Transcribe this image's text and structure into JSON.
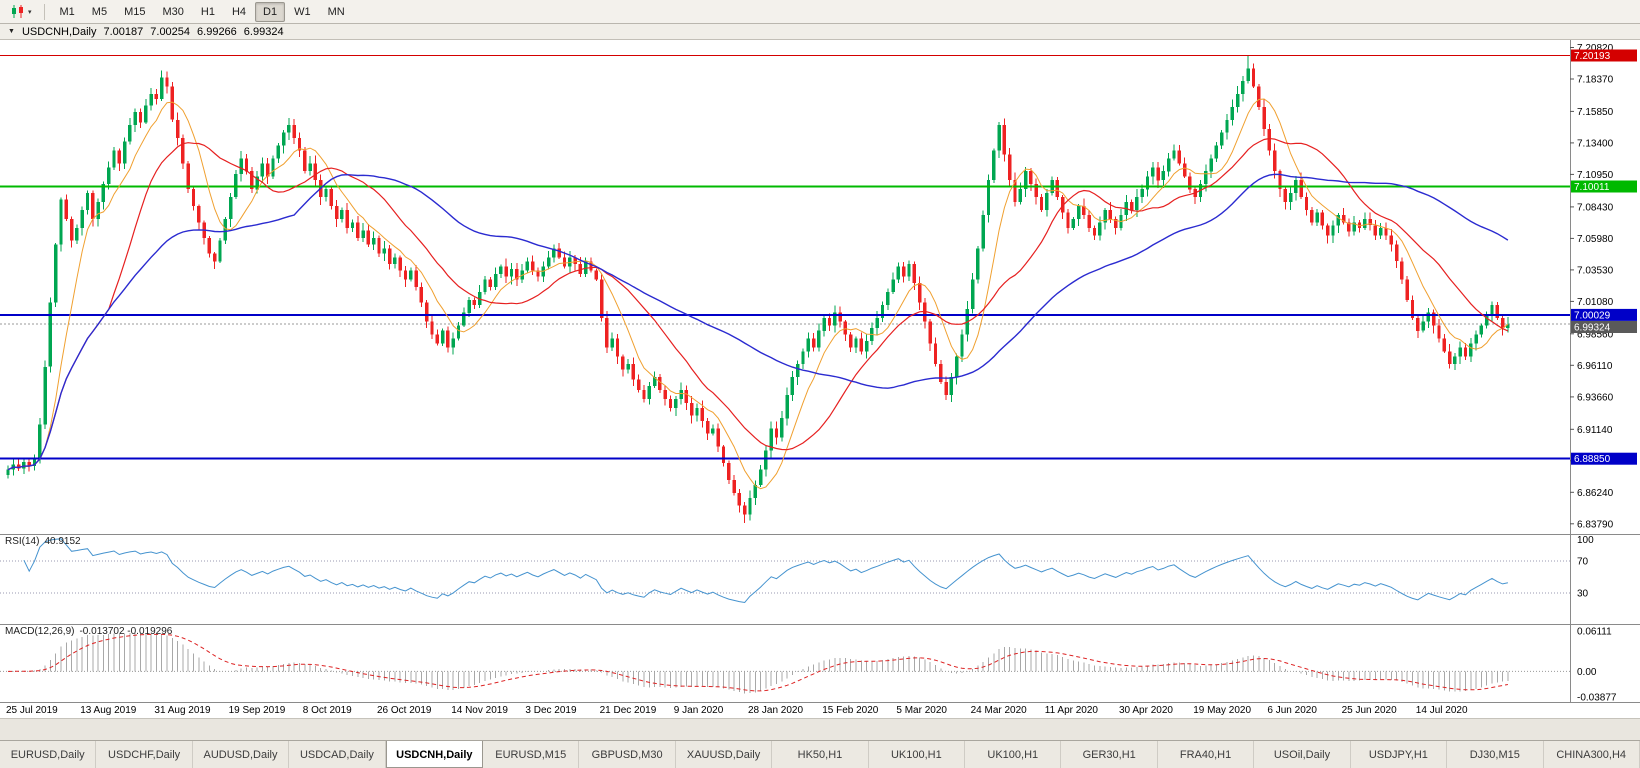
{
  "toolbar": {
    "timeframes": [
      "M1",
      "M5",
      "M15",
      "M30",
      "H1",
      "H4",
      "D1",
      "W1",
      "MN"
    ],
    "active": "D1",
    "caret_icon": "▾"
  },
  "chart_header": {
    "collapse_icon": "▼",
    "symbol": "USDCNH,Daily",
    "ohlc": {
      "open": "7.00187",
      "high": "7.00254",
      "low": "6.99266",
      "close": "6.99324"
    }
  },
  "levels": [
    {
      "value": 7.20193,
      "label": "7.20193",
      "color": "#d40000",
      "line_width": 1
    },
    {
      "value": 7.10011,
      "label": "7.10011",
      "color": "#00b900",
      "line_width": 2
    },
    {
      "value": 7.00029,
      "label": "7.00029",
      "color": "#0000c8",
      "line_width": 2
    },
    {
      "value": 6.8885,
      "label": "6.88850",
      "color": "#0000c8",
      "line_width": 2
    }
  ],
  "bid": {
    "value": 6.99324,
    "label": "6.99324",
    "color": "#5a5a5a"
  },
  "chart_data": {
    "type": "candlestick",
    "title": "USDCNH,Daily",
    "ylim": [
      6.83,
      7.214
    ],
    "y_ticks": [
      "7.20820",
      "7.18370",
      "7.15850",
      "7.13400",
      "7.10950",
      "7.08430",
      "7.05980",
      "7.03530",
      "7.01080",
      "6.98560",
      "6.96110",
      "6.93660",
      "6.91140",
      "6.88690",
      "6.86240",
      "6.83790"
    ],
    "x_labels": [
      "25 Jul 2019",
      "13 Aug 2019",
      "31 Aug 2019",
      "19 Sep 2019",
      "8 Oct 2019",
      "26 Oct 2019",
      "14 Nov 2019",
      "3 Dec 2019",
      "21 Dec 2019",
      "9 Jan 2020",
      "28 Jan 2020",
      "15 Feb 2020",
      "5 Mar 2020",
      "24 Mar 2020",
      "11 Apr 2020",
      "30 Apr 2020",
      "19 May 2020",
      "6 Jun 2020",
      "25 Jun 2020",
      "14 Jul 2020"
    ],
    "closes": [
      6.88,
      6.884,
      6.881,
      6.886,
      6.883,
      6.889,
      6.915,
      6.96,
      7.01,
      7.055,
      7.09,
      7.075,
      7.058,
      7.068,
      7.082,
      7.095,
      7.075,
      7.088,
      7.102,
      7.115,
      7.128,
      7.118,
      7.135,
      7.148,
      7.158,
      7.15,
      7.163,
      7.172,
      7.168,
      7.185,
      7.178,
      7.152,
      7.138,
      7.118,
      7.098,
      7.085,
      7.072,
      7.06,
      7.048,
      7.042,
      7.058,
      7.075,
      7.092,
      7.11,
      7.122,
      7.112,
      7.098,
      7.108,
      7.118,
      7.108,
      7.122,
      7.132,
      7.142,
      7.148,
      7.138,
      7.128,
      7.112,
      7.118,
      7.105,
      7.092,
      7.098,
      7.085,
      7.075,
      7.082,
      7.068,
      7.072,
      7.06,
      7.066,
      7.055,
      7.06,
      7.048,
      7.052,
      7.04,
      7.045,
      7.035,
      7.028,
      7.035,
      7.022,
      7.01,
      6.995,
      6.985,
      6.978,
      6.988,
      6.975,
      6.982,
      6.992,
      7.002,
      7.012,
      7.008,
      7.018,
      7.028,
      7.022,
      7.032,
      7.038,
      7.03,
      7.036,
      7.028,
      7.035,
      7.042,
      7.035,
      7.03,
      7.038,
      7.045,
      7.052,
      7.045,
      7.038,
      7.045,
      7.04,
      7.032,
      7.042,
      7.035,
      7.028,
      6.998,
      6.975,
      6.982,
      6.968,
      6.958,
      6.962,
      6.95,
      6.942,
      6.935,
      6.945,
      6.952,
      6.942,
      6.935,
      6.928,
      6.935,
      6.942,
      6.932,
      6.922,
      6.928,
      6.918,
      6.908,
      6.912,
      6.898,
      6.885,
      6.872,
      6.862,
      6.852,
      6.845,
      6.858,
      6.868,
      6.88,
      6.895,
      6.912,
      6.905,
      6.92,
      6.938,
      6.952,
      6.962,
      6.972,
      6.982,
      6.975,
      6.988,
      6.998,
      6.992,
      7.002,
      6.995,
      6.985,
      6.975,
      6.982,
      6.972,
      6.98,
      6.99,
      6.998,
      7.008,
      7.018,
      7.028,
      7.038,
      7.03,
      7.04,
      7.025,
      7.01,
      6.995,
      6.978,
      6.962,
      6.948,
      6.938,
      6.952,
      6.968,
      6.985,
      7.005,
      7.028,
      7.052,
      7.078,
      7.105,
      7.128,
      7.148,
      7.125,
      7.105,
      7.088,
      7.098,
      7.112,
      7.102,
      7.092,
      7.082,
      7.095,
      7.105,
      7.092,
      7.08,
      7.068,
      7.075,
      7.085,
      7.078,
      7.068,
      7.062,
      7.072,
      7.082,
      7.075,
      7.068,
      7.078,
      7.088,
      7.082,
      7.092,
      7.098,
      7.108,
      7.115,
      7.105,
      7.112,
      7.122,
      7.128,
      7.118,
      7.108,
      7.098,
      7.092,
      7.102,
      7.112,
      7.122,
      7.132,
      7.142,
      7.152,
      7.162,
      7.172,
      7.182,
      7.192,
      7.178,
      7.162,
      7.145,
      7.128,
      7.112,
      7.098,
      7.088,
      7.095,
      7.105,
      7.092,
      7.082,
      7.072,
      7.08,
      7.07,
      7.062,
      7.07,
      7.078,
      7.072,
      7.065,
      7.072,
      7.068,
      7.075,
      7.07,
      7.062,
      7.068,
      7.062,
      7.055,
      7.042,
      7.028,
      7.012,
      6.998,
      6.988,
      6.995,
      7.002,
      6.992,
      6.982,
      6.972,
      6.962,
      6.968,
      6.975,
      6.968,
      6.978,
      6.985,
      6.992,
      7.0,
      7.008,
      6.998,
      6.99,
      6.993
    ],
    "colors": {
      "up": "#00a651",
      "down": "#ee2222",
      "bid_line": "#9a9a9a"
    },
    "indicators": {
      "moving_averages": [
        {
          "period": 8,
          "color": "#f0a030",
          "width": 1
        },
        {
          "period": 20,
          "color": "#e62020",
          "width": 1.2
        },
        {
          "period": 55,
          "color": "#2b2bd0",
          "width": 1.4
        }
      ],
      "rsi": {
        "period": 14,
        "current": "40.9152",
        "levels": [
          70,
          30
        ]
      },
      "macd": {
        "fast": 12,
        "slow": 26,
        "signal": 9,
        "current_main": "-0.013702",
        "current_signal": "-0.019296"
      }
    }
  },
  "rsi_panel": {
    "label": "RSI(14)",
    "value": "40.9152",
    "scale": [
      "100",
      "70",
      "30"
    ],
    "color": "#4593cf"
  },
  "macd_panel": {
    "label": "MACD(12,26,9)",
    "values": "-0.013702 -0.019296",
    "scale": [
      "0.06111",
      "0.00",
      "-0.03877"
    ],
    "hist_color": "#a8a8a8",
    "signal_color": "#dd2222"
  },
  "tabs": {
    "active_index": 4,
    "items": [
      "EURUSD,Daily",
      "USDCHF,Daily",
      "AUDUSD,Daily",
      "USDCAD,Daily",
      "USDCNH,Daily",
      "EURUSD,M15",
      "GBPUSD,M30",
      "XAUUSD,Daily",
      "HK50,H1",
      "UK100,H1",
      "UK100,H1",
      "GER30,H1",
      "FRA40,H1",
      "USOil,Daily",
      "USDJPY,H1",
      "DJ30,M15",
      "CHINA300,H4"
    ]
  }
}
